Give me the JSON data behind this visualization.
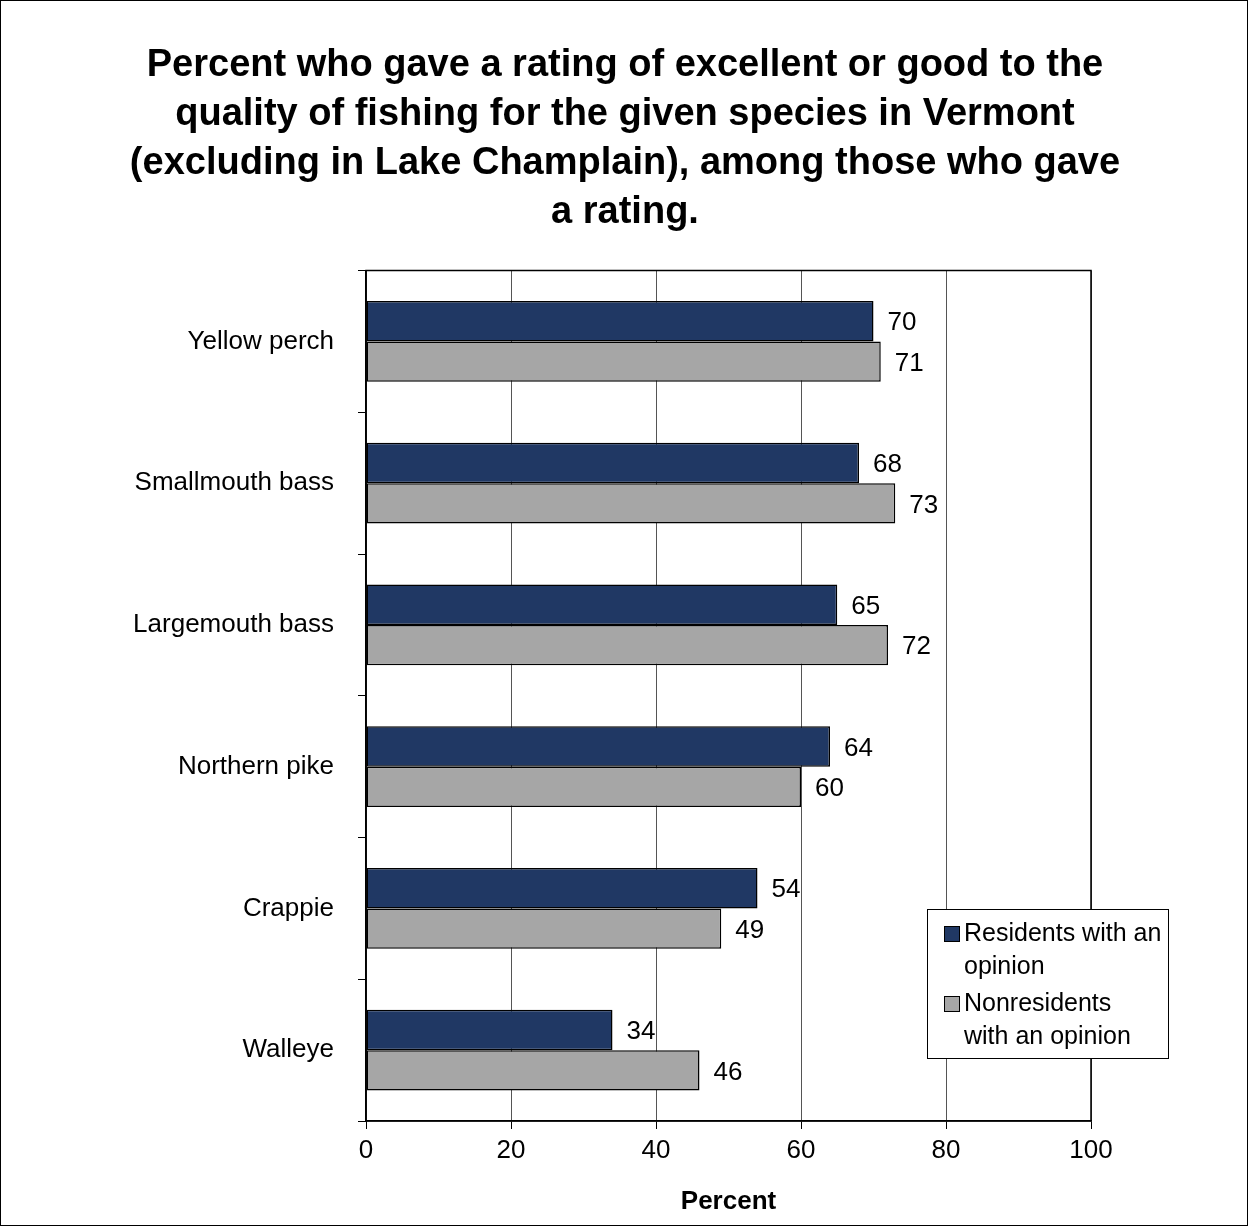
{
  "chart_data": {
    "type": "bar",
    "orientation": "horizontal",
    "title": "Percent who gave a rating of excellent or good to the quality of fishing for the given species in Vermont (excluding in Lake Champlain), among those who gave a rating.",
    "xlabel": "Percent",
    "categories": [
      "Yellow perch",
      "Smallmouth bass",
      "Largemouth bass",
      "Northern pike",
      "Crappie",
      "Walleye"
    ],
    "series": [
      {
        "name": "Residents with an opinion",
        "color": "#203864",
        "values": [
          70,
          68,
          65,
          64,
          54,
          34
        ]
      },
      {
        "name": "Nonresidents with an opinion",
        "color": "#a6a6a6",
        "values": [
          71,
          73,
          72,
          60,
          49,
          46
        ]
      }
    ],
    "xlim": [
      0,
      100
    ],
    "xticks": [
      0,
      20,
      40,
      60,
      80,
      100
    ],
    "grid": "x",
    "legend": "bottom right",
    "data_labels": true
  }
}
